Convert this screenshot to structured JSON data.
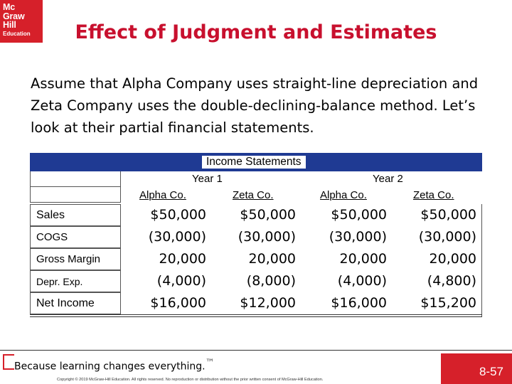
{
  "logo": {
    "line1": "Mc",
    "line2": "Graw",
    "line3": "Hill",
    "line4": "Education"
  },
  "title": "Effect of Judgment and Estimates",
  "intro": "Assume that Alpha Company uses straight-line depreciation and Zeta Company uses the double-declining-balance method. Let’s look at their partial financial statements.",
  "table": {
    "heading": "Income Statements",
    "years": [
      "Year 1",
      "Year 2"
    ],
    "companies": [
      "Alpha Co.",
      "Zeta Co.",
      "Alpha Co.",
      "Zeta Co."
    ],
    "rows": [
      {
        "label": "Sales",
        "values": [
          "$50,000",
          "$50,000",
          "$50,000",
          "$50,000"
        ]
      },
      {
        "label": "COGS",
        "values": [
          "(30,000)",
          "(30,000)",
          "(30,000)",
          "(30,000)"
        ]
      },
      {
        "label": "Gross Margin",
        "values": [
          "20,000",
          "20,000",
          "20,000",
          "20,000"
        ]
      },
      {
        "label": "Depr. Exp.",
        "values": [
          "(4,000)",
          "(8,000)",
          "(4,000)",
          "(4,800)"
        ]
      },
      {
        "label": "Net Income",
        "values": [
          "$16,000",
          "$12,000",
          "$16,000",
          "$15,200"
        ]
      }
    ]
  },
  "footer": {
    "tagline_a": "Because learning changes everything.",
    "tagline_tm": "™",
    "copyright": "Copyright © 2019 McGraw-Hill Education. All rights reserved. No reproduction or distribution without the prior written consent of McGraw-Hill Education.",
    "page_number": "8-57"
  },
  "colors": {
    "brand_red": "#d6202a",
    "title_red": "#c8102e",
    "header_blue": "#1f3a93"
  }
}
